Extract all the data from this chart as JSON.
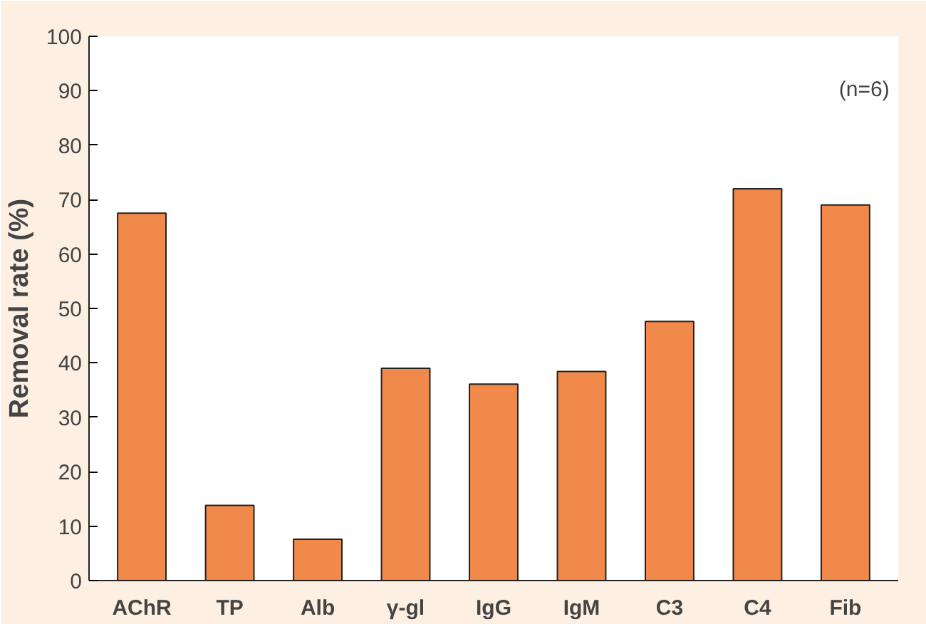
{
  "chart_data": {
    "type": "bar",
    "ylabel": "Removal rate (%)",
    "categories": [
      "AChR",
      "TP",
      "Alb",
      "γ-gl",
      "IgG",
      "IgM",
      "C3",
      "C4",
      "Fib"
    ],
    "values": [
      67.5,
      13.8,
      7.6,
      39,
      36.1,
      38.4,
      47.6,
      72,
      69
    ],
    "color": "#f0894a",
    "ylim": [
      0,
      100
    ],
    "yticks": [
      0,
      10,
      20,
      30,
      40,
      50,
      60,
      70,
      80,
      90,
      100
    ],
    "grid": false,
    "annotations": [
      "(n=6)"
    ]
  }
}
